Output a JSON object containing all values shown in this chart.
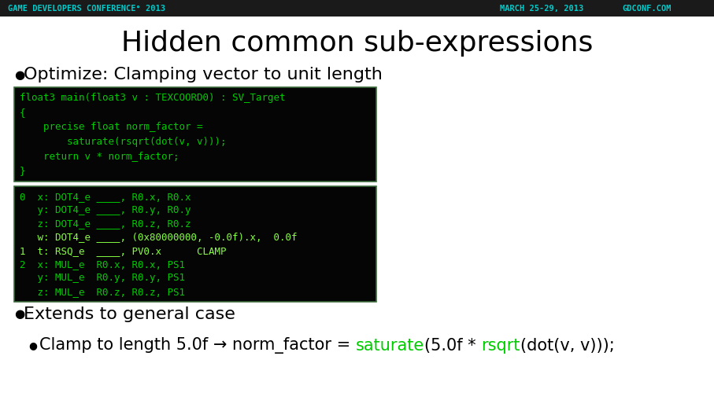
{
  "title": "Hidden common sub-expressions",
  "bg_color": "#ffffff",
  "header_bg": "#1a1a1a",
  "header_text_left": "GAME DEVELOPERS CONFERENCE° 2013",
  "header_text_right1": "MARCH 25-29, 2013",
  "header_text_right2": "GDCONF.COM",
  "header_color": "#00cccc",
  "bullet1": "Optimize: Clamping vector to unit length",
  "bullet2": "Extends to general case",
  "sub_bullet_parts": [
    {
      "text": "Clamp to length 5.0f → norm_factor = ",
      "color": "#000000"
    },
    {
      "text": "saturate",
      "color": "#00cc00"
    },
    {
      "text": "(5.0f * ",
      "color": "#000000"
    },
    {
      "text": "rsqrt",
      "color": "#00cc00"
    },
    {
      "text": "(dot(v, v)));",
      "color": "#000000"
    }
  ],
  "code_bg": "#050505",
  "code_border": "#3a6a3a",
  "code_color": "#00cc00",
  "code_lines_top": [
    "float3 main(float3 v : TEXCOORD0) : SV_Target",
    "{",
    "    precise float norm_factor =",
    "        saturate(rsqrt(dot(v, v)));",
    "    return v * norm_factor;",
    "}"
  ],
  "code_lines_bottom": [
    {
      "text": "0  x: DOT4_e ____, R0.x, R0.x",
      "color": "#00cc00"
    },
    {
      "text": "   y: DOT4_e ____, R0.y, R0.y",
      "color": "#00cc00"
    },
    {
      "text": "   z: DOT4_e ____, R0.z, R0.z",
      "color": "#00cc00"
    },
    {
      "text": "   w: DOT4_e ____, (0x80000000, -0.0f).x,  0.0f",
      "color": "#88ff44"
    },
    {
      "text": "1  t: RSQ_e  ____, PV0.x      CLAMP",
      "color": "#88ff44"
    },
    {
      "text": "2  x: MUL_e  R0.x, R0.x, PS1",
      "color": "#00cc00"
    },
    {
      "text": "   y: MUL_e  R0.y, R0.y, PS1",
      "color": "#00cc00"
    },
    {
      "text": "   z: MUL_e  R0.z, R0.z, PS1",
      "color": "#00cc00"
    }
  ],
  "title_fontsize": 26,
  "bullet_fontsize": 16,
  "sub_bullet_fontsize": 15,
  "code_fontsize": 9,
  "header_fontsize": 7.5
}
